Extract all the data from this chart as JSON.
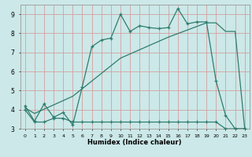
{
  "title": "",
  "xlabel": "Humidex (Indice chaleur)",
  "bg_color": "#cce8e8",
  "grid_color": "#d4a0a0",
  "line_color": "#2e7d6e",
  "x_min": -0.5,
  "x_max": 23.5,
  "y_min": 3,
  "y_max": 9.5,
  "series1_x": [
    0,
    1,
    2,
    3,
    4,
    5,
    6,
    7,
    8,
    9,
    10,
    11,
    12,
    13,
    14,
    15,
    16,
    17,
    18,
    19,
    20,
    21,
    22,
    23
  ],
  "series1_y": [
    4.2,
    3.4,
    4.3,
    3.6,
    3.85,
    3.2,
    5.2,
    7.3,
    7.65,
    7.75,
    9.0,
    8.1,
    8.4,
    8.3,
    8.25,
    8.3,
    9.3,
    8.5,
    8.6,
    8.6,
    5.5,
    3.7,
    3.0,
    3.0
  ],
  "series2_x": [
    0,
    1,
    2,
    3,
    4,
    5,
    6,
    7,
    8,
    9,
    10,
    11,
    12,
    13,
    14,
    15,
    16,
    17,
    18,
    19,
    20,
    21,
    22,
    23
  ],
  "series2_y": [
    4.0,
    3.35,
    3.35,
    3.55,
    3.55,
    3.35,
    3.35,
    3.35,
    3.35,
    3.35,
    3.35,
    3.35,
    3.35,
    3.35,
    3.35,
    3.35,
    3.35,
    3.35,
    3.35,
    3.35,
    3.35,
    3.0,
    3.0,
    3.0
  ],
  "series3_x": [
    0,
    1,
    5,
    10,
    15,
    19,
    20,
    21,
    22,
    23
  ],
  "series3_y": [
    4.1,
    3.8,
    4.7,
    6.7,
    7.8,
    8.55,
    8.55,
    8.1,
    8.1,
    3.0
  ],
  "yticks": [
    3,
    4,
    5,
    6,
    7,
    8,
    9
  ],
  "xticks": [
    0,
    1,
    2,
    3,
    4,
    5,
    6,
    7,
    8,
    9,
    10,
    11,
    12,
    13,
    14,
    15,
    16,
    17,
    18,
    19,
    20,
    21,
    22,
    23
  ]
}
